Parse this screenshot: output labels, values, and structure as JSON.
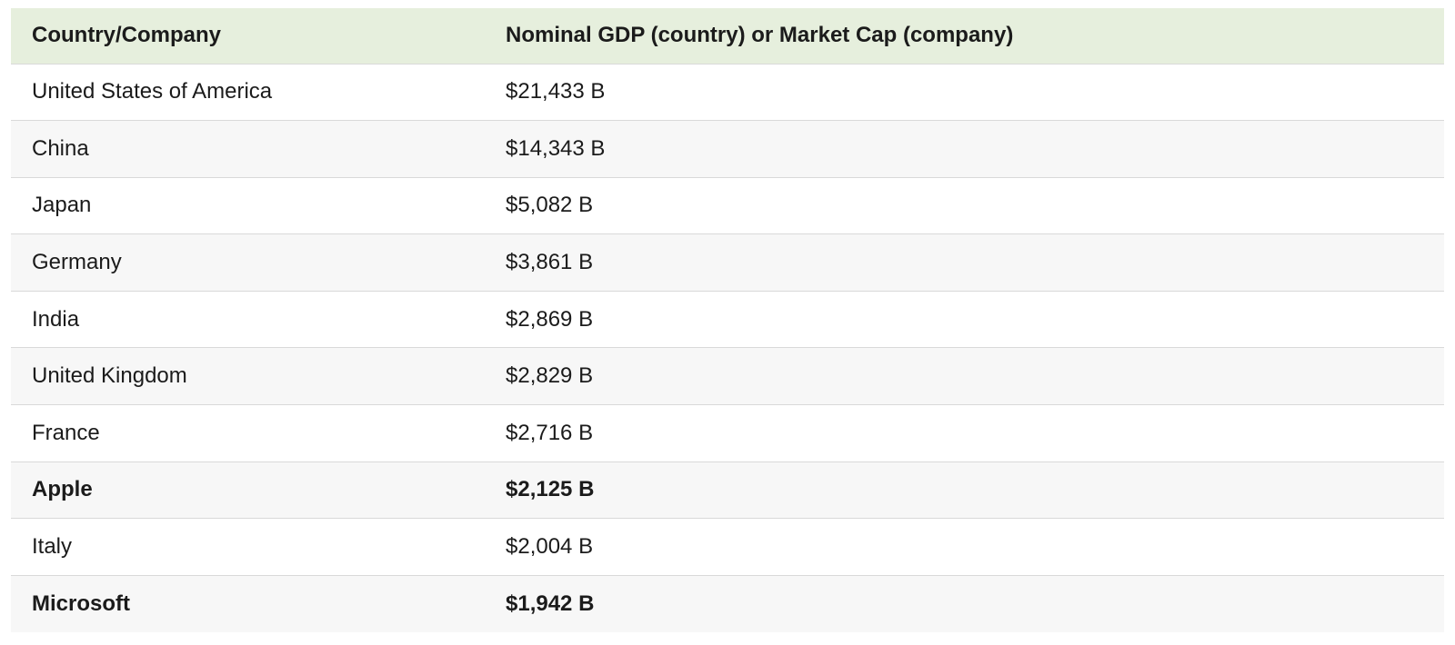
{
  "table": {
    "headers": {
      "name": "Country/Company",
      "value": "Nominal GDP (country) or Market Cap (company)"
    },
    "rows": [
      {
        "name": "United States of America",
        "value": "$21,433 B",
        "highlight": false
      },
      {
        "name": "China",
        "value": "$14,343 B",
        "highlight": false
      },
      {
        "name": "Japan",
        "value": "$5,082 B",
        "highlight": false
      },
      {
        "name": "Germany",
        "value": "$3,861 B",
        "highlight": false
      },
      {
        "name": "India",
        "value": "$2,869 B",
        "highlight": false
      },
      {
        "name": "United Kingdom",
        "value": "$2,829 B",
        "highlight": false
      },
      {
        "name": "France",
        "value": "$2,716 B",
        "highlight": false
      },
      {
        "name": "Apple",
        "value": "$2,125 B",
        "highlight": true
      },
      {
        "name": "Italy",
        "value": "$2,004 B",
        "highlight": false
      },
      {
        "name": "Microsoft",
        "value": "$1,942 B",
        "highlight": true
      }
    ]
  },
  "colors": {
    "header_background": "#e6efdd",
    "stripe_background": "#f7f7f7",
    "row_border": "#d9d9d9"
  }
}
